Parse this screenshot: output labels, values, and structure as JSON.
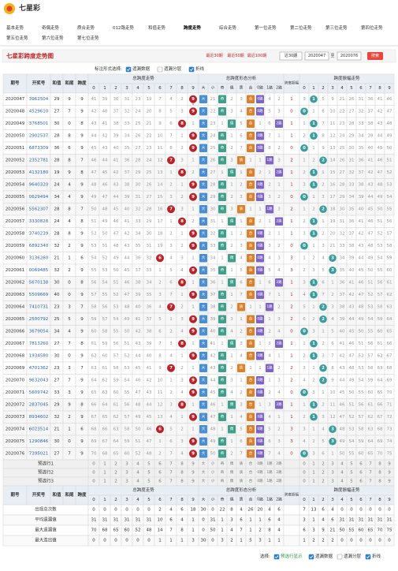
{
  "header": {
    "logo": "七星彩",
    "tabs": [
      "基本走势",
      "奇偶走势",
      "质合走势",
      "012路走势",
      "和值走势",
      "跨度走势",
      "综合走势",
      "第一位走势",
      "第二位走势",
      "第三位走势",
      "第四位走势",
      "第五位走势",
      "第六位走势",
      "第七位走势"
    ],
    "active_tab": 5
  },
  "title": "七星彩跨度走势图",
  "range_options": [
    "最近30期",
    "最近50期",
    "最近100期"
  ],
  "select": "近30期",
  "from": "2020047",
  "to_label": "至",
  "to": "2020076",
  "search": "搜索",
  "marking": {
    "label": "标注形式选择:",
    "options": [
      {
        "label": "遗漏数据",
        "checked": true
      },
      {
        "label": "遗漏分层",
        "checked": false
      },
      {
        "label": "折线",
        "checked": true
      }
    ]
  },
  "table": {
    "columns": [
      "期号",
      "开奖号",
      "和值",
      "和尾",
      "跨度"
    ],
    "groups": [
      "总跨度走势",
      "总跨度形态分析",
      "跨度振幅",
      "跨度振幅走势"
    ],
    "digits": [
      0,
      1,
      2,
      3,
      4,
      5,
      6,
      7,
      8,
      9
    ],
    "shape_labels": [
      "大",
      "小",
      "奇",
      "偶",
      "质",
      "合",
      "0路",
      "1路",
      "2路"
    ],
    "rows": [
      [
        "2020047",
        "3962504",
        29,
        9,
        9
      ],
      [
        "2020048",
        "4529610",
        27,
        7,
        9
      ],
      [
        "2020049",
        "3768501",
        30,
        0,
        8
      ],
      [
        "2020050",
        "2902537",
        28,
        8,
        9
      ],
      [
        "2020051",
        "6873309",
        36,
        6,
        9
      ],
      [
        "2020052",
        "2352781",
        28,
        8,
        7
      ],
      [
        "2020053",
        "4132180",
        19,
        9,
        8
      ],
      [
        "2020054",
        "9640320",
        24,
        4,
        9
      ],
      [
        "2020055",
        "0629494",
        34,
        4,
        9
      ],
      [
        "2020056",
        "5562307",
        28,
        8,
        7
      ],
      [
        "2020057",
        "3330828",
        24,
        4,
        8
      ],
      [
        "2020058",
        "3740239",
        28,
        8,
        9
      ],
      [
        "2020059",
        "6892340",
        32,
        2,
        9
      ],
      [
        "2020060",
        "3136260",
        21,
        1,
        6
      ],
      [
        "2020061",
        "0069485",
        32,
        2,
        9
      ],
      [
        "2020062",
        "5670138",
        30,
        0,
        8
      ],
      [
        "2020063",
        "5509669",
        40,
        0,
        9
      ],
      [
        "2020064",
        "7410731",
        23,
        3,
        7
      ],
      [
        "2020065",
        "2500792",
        25,
        5,
        9
      ],
      [
        "2020066",
        "3679054",
        34,
        4,
        9
      ],
      [
        "2020067",
        "7813260",
        27,
        7,
        8
      ],
      [
        "2020068",
        "1934580",
        30,
        0,
        9
      ],
      [
        "2020069",
        "4701362",
        23,
        3,
        7
      ],
      [
        "2020070",
        "9632043",
        27,
        7,
        9
      ],
      [
        "2020071",
        "5609742",
        33,
        3,
        9
      ],
      [
        "2020072",
        "2837045",
        29,
        9,
        8
      ],
      [
        "2020073",
        "8934602",
        32,
        2,
        9
      ],
      [
        "2020074",
        "6023514",
        21,
        1,
        6
      ],
      [
        "2020075",
        "1290846",
        30,
        0,
        9
      ],
      [
        "2020076",
        "7395021",
        27,
        7,
        9
      ]
    ],
    "span_trend": [
      [
        41,
        39,
        36,
        31,
        23,
        19,
        7,
        4,
        2,
        9
      ],
      [
        42,
        40,
        37,
        32,
        24,
        20,
        8,
        5,
        3,
        9
      ],
      [
        43,
        41,
        38,
        33,
        25,
        21,
        9,
        6,
        8,
        1
      ],
      [
        44,
        42,
        39,
        34,
        26,
        22,
        10,
        7,
        1,
        9
      ],
      [
        45,
        43,
        40,
        35,
        27,
        23,
        11,
        8,
        2,
        9
      ],
      [
        46,
        44,
        41,
        36,
        28,
        24,
        12,
        7,
        3,
        1
      ],
      [
        47,
        45,
        42,
        37,
        29,
        25,
        13,
        1,
        8,
        2
      ],
      [
        48,
        46,
        43,
        38,
        30,
        26,
        14,
        2,
        1,
        9
      ],
      [
        49,
        47,
        44,
        39,
        31,
        27,
        15,
        3,
        2,
        9
      ],
      [
        50,
        48,
        45,
        40,
        32,
        28,
        16,
        7,
        3,
        1
      ],
      [
        51,
        49,
        46,
        41,
        33,
        29,
        17,
        1,
        8,
        2
      ],
      [
        52,
        50,
        47,
        42,
        34,
        30,
        18,
        2,
        1,
        9
      ],
      [
        53,
        51,
        48,
        43,
        35,
        31,
        19,
        3,
        2,
        9
      ],
      [
        54,
        52,
        49,
        44,
        36,
        32,
        6,
        4,
        3,
        1
      ],
      [
        55,
        53,
        50,
        45,
        37,
        33,
        1,
        5,
        4,
        9
      ],
      [
        56,
        54,
        51,
        46,
        38,
        34,
        2,
        6,
        8,
        1
      ],
      [
        57,
        55,
        52,
        47,
        39,
        35,
        3,
        7,
        1,
        9
      ],
      [
        58,
        56,
        53,
        48,
        40,
        36,
        4,
        7,
        2,
        1
      ],
      [
        59,
        57,
        54,
        49,
        41,
        37,
        5,
        1,
        3,
        9
      ],
      [
        60,
        58,
        55,
        50,
        42,
        38,
        6,
        2,
        4,
        9
      ],
      [
        61,
        59,
        56,
        51,
        43,
        39,
        7,
        3,
        8,
        1
      ],
      [
        62,
        60,
        57,
        52,
        44,
        40,
        8,
        4,
        1,
        9
      ],
      [
        63,
        61,
        58,
        53,
        45,
        41,
        9,
        7,
        2,
        1
      ],
      [
        64,
        62,
        59,
        54,
        46,
        42,
        10,
        1,
        3,
        9
      ],
      [
        65,
        63,
        60,
        55,
        47,
        43,
        11,
        2,
        4,
        9
      ],
      [
        66,
        64,
        61,
        56,
        48,
        44,
        12,
        3,
        8,
        1
      ],
      [
        67,
        65,
        62,
        57,
        49,
        45,
        13,
        4,
        1,
        9
      ],
      [
        68,
        66,
        63,
        58,
        50,
        46,
        6,
        5,
        2,
        1
      ],
      [
        69,
        67,
        64,
        59,
        51,
        47,
        1,
        6,
        3,
        9
      ],
      [
        70,
        68,
        65,
        60,
        52,
        48,
        2,
        7,
        4,
        9
      ]
    ],
    "shape": [
      [
        "大",
        21,
        "奇",
        2,
        3,
        "合",
        "0路",
        4,
        2
      ],
      [
        "大",
        22,
        "奇",
        3,
        4,
        "合",
        "0路",
        5,
        3
      ],
      [
        "大",
        23,
        1,
        "偶",
        5,
        "合",
        1,
        6,
        "2路"
      ],
      [
        "大",
        24,
        "奇",
        1,
        6,
        "合",
        "0路",
        7,
        1
      ],
      [
        "大",
        25,
        "奇",
        2,
        7,
        "合",
        "0路",
        8,
        2
      ],
      [
        "大",
        26,
        "奇",
        3,
        "质",
        1,
        1,
        "1路",
        3
      ],
      [
        "大",
        27,
        1,
        "偶",
        1,
        "合",
        2,
        1,
        "2路"
      ],
      [
        "大",
        28,
        "奇",
        1,
        2,
        "合",
        "0路",
        2,
        1
      ],
      [
        "大",
        29,
        "奇",
        2,
        3,
        "合",
        "0路",
        3,
        2
      ],
      [
        "大",
        30,
        "奇",
        3,
        "质",
        1,
        1,
        "1路",
        3
      ],
      [
        "大",
        31,
        1,
        "偶",
        1,
        "合",
        2,
        1,
        "2路"
      ],
      [
        "大",
        32,
        "奇",
        1,
        2,
        "合",
        "0路",
        2,
        1
      ],
      [
        "大",
        33,
        "奇",
        2,
        3,
        "合",
        "0路",
        3,
        2
      ],
      [
        "大",
        34,
        1,
        "偶",
        4,
        "合",
        "0路",
        4,
        3
      ],
      [
        "大",
        35,
        "奇",
        1,
        5,
        "合",
        "0路",
        5,
        4
      ],
      [
        "大",
        36,
        1,
        "偶",
        6,
        "合",
        1,
        6,
        "2路"
      ],
      [
        "大",
        37,
        "奇",
        1,
        7,
        "合",
        "0路",
        7,
        1
      ],
      [
        "大",
        38,
        "奇",
        2,
        "质",
        1,
        1,
        "1路",
        2
      ],
      [
        "大",
        39,
        "奇",
        3,
        1,
        "合",
        "0路",
        1,
        3
      ],
      [
        "大",
        40,
        "奇",
        4,
        2,
        "合",
        "0路",
        2,
        4
      ],
      [
        "大",
        41,
        1,
        "偶",
        3,
        "合",
        1,
        3,
        "2路"
      ],
      [
        "大",
        42,
        "奇",
        1,
        4,
        "合",
        "0路",
        4,
        1
      ],
      [
        "大",
        43,
        "奇",
        2,
        "质",
        1,
        1,
        "1路",
        2
      ],
      [
        "大",
        44,
        "奇",
        3,
        1,
        "合",
        "0路",
        1,
        3
      ],
      [
        "大",
        45,
        "奇",
        4,
        2,
        "合",
        "0路",
        2,
        4
      ],
      [
        "大",
        46,
        1,
        "偶",
        3,
        "合",
        1,
        3,
        "2路"
      ],
      [
        "大",
        47,
        "奇",
        1,
        4,
        "合",
        "0路",
        4,
        1
      ],
      [
        "大",
        48,
        1,
        "偶",
        5,
        "合",
        "0路",
        5,
        2
      ],
      [
        "大",
        49,
        "奇",
        1,
        6,
        "合",
        "0路",
        6,
        3
      ],
      [
        "大",
        50,
        "奇",
        2,
        7,
        "合",
        "0路",
        7,
        4
      ]
    ],
    "amp": [
      1,
      0,
      1,
      1,
      0,
      2,
      1,
      1,
      0,
      2,
      1,
      1,
      0,
      3,
      3,
      1,
      1,
      2,
      2,
      0,
      1,
      1,
      2,
      2,
      0,
      1,
      1,
      3,
      3,
      0
    ],
    "amp_trend": [
      [
        3,
        1,
        5,
        9,
        21,
        26,
        31,
        36,
        41,
        46
      ],
      [
        0,
        1,
        6,
        10,
        22,
        27,
        32,
        37,
        42,
        47
      ],
      [
        1,
        1,
        7,
        11,
        23,
        28,
        33,
        38,
        43,
        48
      ],
      [
        2,
        1,
        8,
        12,
        24,
        29,
        34,
        39,
        44,
        49
      ],
      [
        0,
        1,
        9,
        13,
        25,
        30,
        35,
        40,
        45,
        50
      ],
      [
        1,
        2,
        2,
        14,
        26,
        31,
        36,
        41,
        46,
        51
      ],
      [
        2,
        1,
        1,
        15,
        27,
        32,
        37,
        42,
        47,
        52
      ],
      [
        3,
        1,
        2,
        16,
        28,
        33,
        38,
        43,
        48,
        53
      ],
      [
        0,
        1,
        3,
        17,
        29,
        34,
        39,
        44,
        49,
        54
      ],
      [
        1,
        2,
        2,
        18,
        30,
        35,
        40,
        45,
        50,
        55
      ],
      [
        2,
        1,
        1,
        19,
        31,
        36,
        41,
        46,
        51,
        56
      ],
      [
        3,
        1,
        2,
        20,
        32,
        37,
        42,
        47,
        52,
        57
      ],
      [
        0,
        1,
        3,
        21,
        33,
        38,
        43,
        48,
        53,
        58
      ],
      [
        1,
        2,
        4,
        3,
        34,
        39,
        44,
        49,
        54,
        59
      ],
      [
        2,
        3,
        5,
        3,
        35,
        40,
        45,
        50,
        55,
        60
      ],
      [
        3,
        1,
        6,
        1,
        36,
        41,
        46,
        51,
        56,
        61
      ],
      [
        4,
        1,
        7,
        2,
        37,
        42,
        47,
        52,
        57,
        62
      ],
      [
        5,
        1,
        2,
        3,
        38,
        43,
        48,
        53,
        58,
        63
      ],
      [
        6,
        2,
        2,
        4,
        39,
        44,
        49,
        54,
        59,
        64
      ],
      [
        0,
        3,
        1,
        5,
        40,
        45,
        50,
        55,
        60,
        65
      ],
      [
        1,
        1,
        2,
        6,
        41,
        46,
        51,
        56,
        61,
        66
      ],
      [
        2,
        1,
        3,
        7,
        42,
        47,
        52,
        57,
        62,
        67
      ],
      [
        3,
        1,
        2,
        8,
        43,
        48,
        53,
        58,
        63,
        68
      ],
      [
        4,
        2,
        2,
        9,
        44,
        49,
        54,
        59,
        64,
        69
      ],
      [
        0,
        3,
        1,
        10,
        45,
        50,
        55,
        60,
        65,
        70
      ],
      [
        1,
        1,
        2,
        11,
        46,
        51,
        56,
        61,
        66,
        71
      ],
      [
        2,
        1,
        3,
        12,
        47,
        52,
        57,
        62,
        67,
        72
      ],
      [
        3,
        1,
        4,
        3,
        48,
        53,
        58,
        63,
        68,
        73
      ],
      [
        4,
        2,
        5,
        3,
        49,
        54,
        59,
        64,
        69,
        74
      ],
      [
        0,
        3,
        6,
        1,
        50,
        55,
        60,
        65,
        70,
        75
      ]
    ],
    "preselect": [
      "预选行1",
      "预选行2",
      "预选行3"
    ],
    "stats": [
      {
        "label": "出现总次数",
        "trend": [
          0,
          0,
          0,
          0,
          0,
          0,
          2,
          4,
          6,
          18
        ],
        "shape": [
          30,
          0,
          22,
          8,
          4,
          26,
          20,
          4,
          6
        ],
        "amp_trend": [
          7,
          13,
          6,
          4,
          0,
          0,
          0,
          0,
          0,
          0
        ]
      },
      {
        "label": "平均遗漏值",
        "trend": [
          31,
          31,
          31,
          31,
          31,
          31,
          10,
          6,
          4,
          1
        ],
        "shape": [
          0,
          31,
          1,
          3,
          6,
          1,
          1,
          6,
          4
        ],
        "amp_trend": [
          3,
          1,
          4,
          6,
          31,
          31,
          31,
          31,
          31,
          31
        ]
      },
      {
        "label": "最大遗漏值",
        "trend": [
          70,
          68,
          65,
          60,
          52,
          48,
          14,
          7,
          8,
          1
        ],
        "shape": [
          0,
          50,
          1,
          4,
          7,
          1,
          2,
          8,
          4
        ],
        "amp_trend": [
          6,
          3,
          9,
          21,
          50,
          55,
          60,
          65,
          70,
          75
        ]
      },
      {
        "label": "最大连出值",
        "trend": [
          0,
          0,
          0,
          0,
          0,
          0,
          1,
          1,
          1,
          3
        ],
        "shape": [
          30,
          0,
          3,
          2,
          1,
          5,
          3,
          1,
          1
        ],
        "amp_trend": [
          1,
          2,
          2,
          2,
          0,
          0,
          0,
          0,
          0,
          0
        ]
      }
    ]
  },
  "legend": {
    "label": "选择:",
    "options": [
      {
        "label": "预选行显示",
        "checked": true
      },
      {
        "label": "遗漏数据",
        "checked": true
      },
      {
        "label": "遗漏分层",
        "checked": false
      },
      {
        "label": "折线",
        "checked": true
      }
    ]
  }
}
